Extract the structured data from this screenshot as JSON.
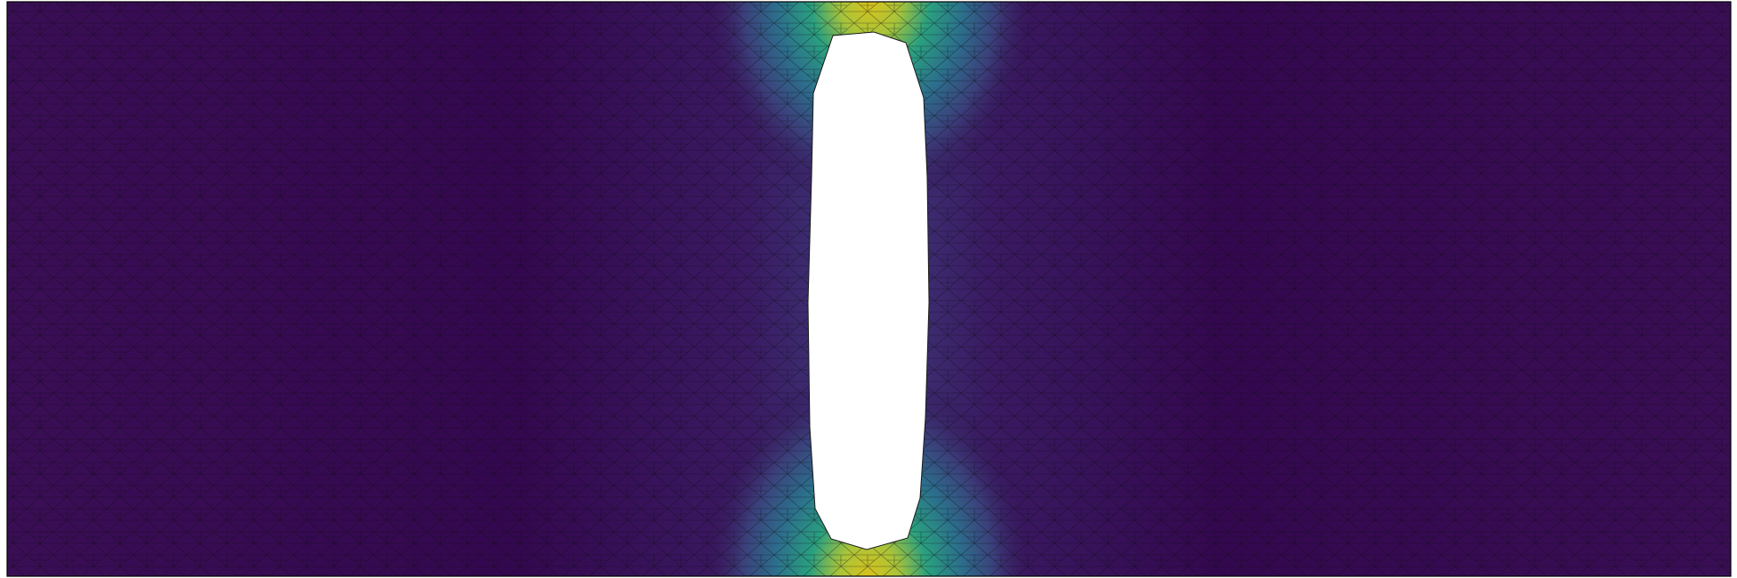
{
  "figure": {
    "kind": "finite element stress field on plate with central hole",
    "colormap": "viridis",
    "colors": {
      "background": "#ffffff",
      "mesh_line": "#101010",
      "low": "#440154",
      "mid_low": "#3b528b",
      "mid": "#21918c",
      "mid_high": "#5ec962",
      "high": "#fde725",
      "peak": "#c9b400"
    },
    "hole_fill": "#ffffff",
    "mesh": "triangular"
  }
}
